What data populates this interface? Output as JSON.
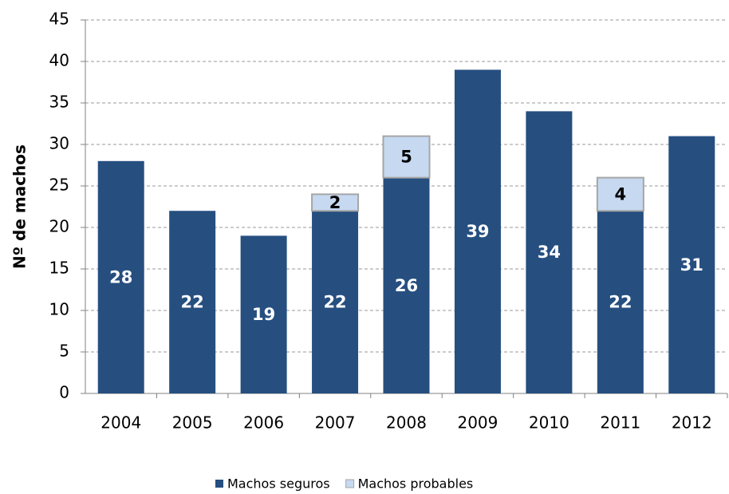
{
  "chart_data": {
    "type": "stacked_bar",
    "y_label": "Nº de machos",
    "categories": [
      "2004",
      "2005",
      "2006",
      "2007",
      "2008",
      "2009",
      "2010",
      "2011",
      "2012"
    ],
    "series": [
      {
        "name": "Machos seguros",
        "color": "#264f80",
        "values": [
          28,
          22,
          19,
          22,
          26,
          39,
          34,
          22,
          31
        ]
      },
      {
        "name": "Machos probables",
        "color": "#c6d9f1",
        "values": [
          null,
          null,
          null,
          2,
          5,
          null,
          null,
          4,
          null
        ]
      }
    ],
    "ylim": [
      0,
      45
    ],
    "yticks": [
      0,
      5,
      10,
      15,
      20,
      25,
      30,
      35,
      40,
      45
    ],
    "grid": true,
    "legend": "bottom"
  }
}
